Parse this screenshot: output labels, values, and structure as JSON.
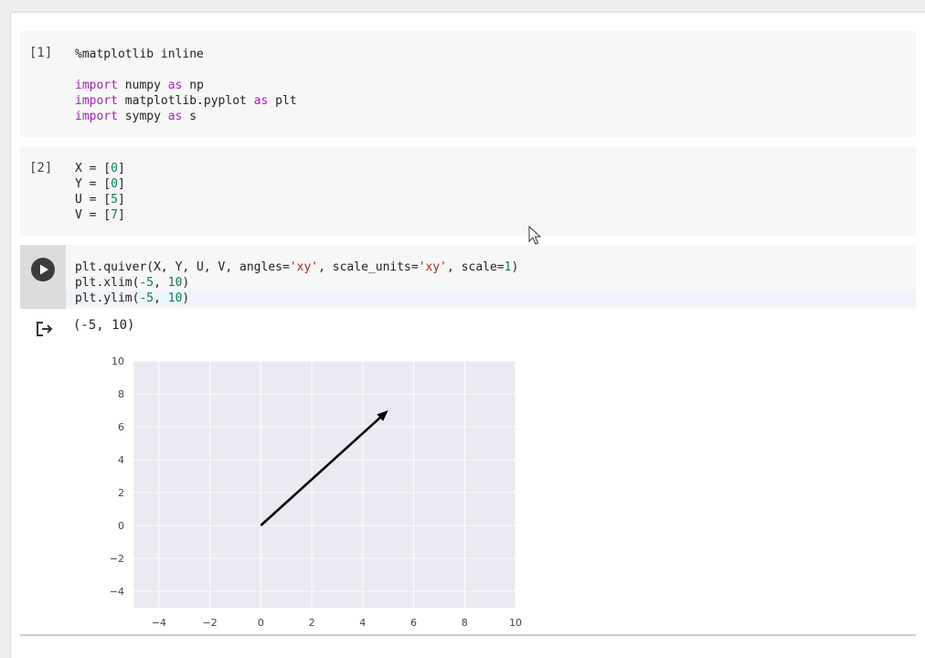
{
  "cells": [
    {
      "exec_count": "[1]",
      "lines": [
        [
          {
            "t": "%matplotlib inline",
            "c": ""
          }
        ],
        [
          {
            "t": "",
            "c": ""
          }
        ],
        [
          {
            "t": "import",
            "c": "kw"
          },
          {
            "t": " numpy ",
            "c": ""
          },
          {
            "t": "as",
            "c": "kw"
          },
          {
            "t": " np",
            "c": ""
          }
        ],
        [
          {
            "t": "import",
            "c": "kw"
          },
          {
            "t": " matplotlib.pyplot ",
            "c": ""
          },
          {
            "t": "as",
            "c": "kw"
          },
          {
            "t": " plt",
            "c": ""
          }
        ],
        [
          {
            "t": "import",
            "c": "kw"
          },
          {
            "t": " sympy ",
            "c": ""
          },
          {
            "t": "as",
            "c": "kw"
          },
          {
            "t": " s",
            "c": ""
          }
        ]
      ]
    },
    {
      "exec_count": "[2]",
      "lines": [
        [
          {
            "t": "X = [",
            "c": ""
          },
          {
            "t": "0",
            "c": "num"
          },
          {
            "t": "]",
            "c": ""
          }
        ],
        [
          {
            "t": "Y = [",
            "c": ""
          },
          {
            "t": "0",
            "c": "num"
          },
          {
            "t": "]",
            "c": ""
          }
        ],
        [
          {
            "t": "U = [",
            "c": ""
          },
          {
            "t": "5",
            "c": "num"
          },
          {
            "t": "]",
            "c": ""
          }
        ],
        [
          {
            "t": "V = [",
            "c": ""
          },
          {
            "t": "7",
            "c": "num"
          },
          {
            "t": "]",
            "c": ""
          }
        ]
      ]
    },
    {
      "exec_count": "",
      "lines": [
        [
          {
            "t": "plt.quiver(X, Y, U, V, angles=",
            "c": ""
          },
          {
            "t": "'xy'",
            "c": "str"
          },
          {
            "t": ", scale_units=",
            "c": ""
          },
          {
            "t": "'xy'",
            "c": "str"
          },
          {
            "t": ", scale=",
            "c": ""
          },
          {
            "t": "1",
            "c": "num"
          },
          {
            "t": ")",
            "c": ""
          }
        ],
        [
          {
            "t": "plt.xlim(",
            "c": ""
          },
          {
            "t": "-5",
            "c": "num"
          },
          {
            "t": ", ",
            "c": ""
          },
          {
            "t": "10",
            "c": "num"
          },
          {
            "t": ")",
            "c": ""
          }
        ],
        [
          {
            "t": "plt.ylim(",
            "c": ""
          },
          {
            "t": "-5",
            "c": "num"
          },
          {
            "t": ", ",
            "c": ""
          },
          {
            "t": "10",
            "c": "num"
          },
          {
            "t": ")",
            "c": ""
          }
        ]
      ]
    }
  ],
  "output": {
    "text": "(-5, 10)"
  },
  "chart_data": {
    "type": "quiver",
    "title": "",
    "xlabel": "",
    "ylabel": "",
    "xlim": [
      -5,
      10
    ],
    "ylim": [
      -5,
      10
    ],
    "xticks": [
      -4,
      -2,
      0,
      2,
      4,
      6,
      8,
      10
    ],
    "yticks": [
      -4,
      -2,
      0,
      2,
      4,
      6,
      8,
      10
    ],
    "xtick_labels": [
      "−4",
      "−2",
      "0",
      "2",
      "4",
      "6",
      "8",
      "10"
    ],
    "ytick_labels": [
      "−4",
      "−2",
      "0",
      "2",
      "4",
      "6",
      "8",
      "10"
    ],
    "grid": true,
    "vectors": [
      {
        "x": 0,
        "y": 0,
        "u": 5,
        "v": 7
      }
    ]
  },
  "colors": {
    "plot_bg": "#eaeaf2",
    "grid": "#ffffff",
    "arrow": "#000000"
  }
}
